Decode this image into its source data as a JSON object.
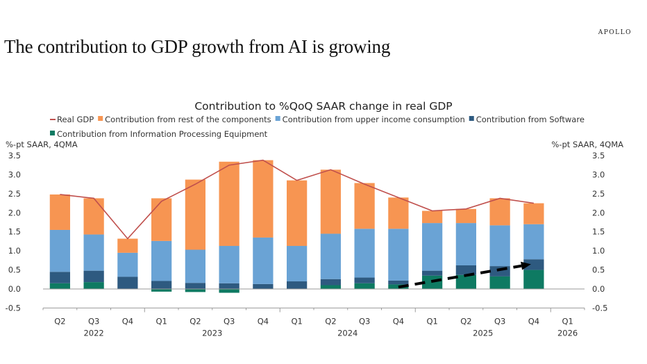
{
  "brand": "APOLLO",
  "headline": "The contribution to GDP growth from AI is growing",
  "chart_data": {
    "type": "bar",
    "stacked": true,
    "title": "Contribution to %QoQ SAAR change in real GDP",
    "ylabel_left": "%-pt SAAR, 4QMA",
    "ylabel_right": "%-pt SAAR, 4QMA",
    "ylim": [
      -0.5,
      3.5
    ],
    "yticks": [
      "3.5",
      "3.0",
      "2.5",
      "2.0",
      "1.5",
      "1.0",
      "0.5",
      "0.0",
      "-0.5"
    ],
    "ytick_values": [
      3.5,
      3.0,
      2.5,
      2.0,
      1.5,
      1.0,
      0.5,
      0.0,
      -0.5
    ],
    "grid": false,
    "legend_position": "top",
    "categories": [
      "Q2",
      "Q3",
      "Q4",
      "Q1",
      "Q2",
      "Q3",
      "Q4",
      "Q1",
      "Q2",
      "Q3",
      "Q4",
      "Q1",
      "Q2",
      "Q3",
      "Q4",
      "Q1"
    ],
    "years": [
      {
        "label": "2022",
        "center_index": 1
      },
      {
        "label": "2023",
        "center_index": 4.5
      },
      {
        "label": "2024",
        "center_index": 8.5
      },
      {
        "label": "2025",
        "center_index": 12.5
      },
      {
        "label": "2026",
        "center_index": 15
      }
    ],
    "series": [
      {
        "name": "Contribution from Information Processing Equipment",
        "kind": "bar",
        "color": "#0e7a62",
        "values": [
          0.15,
          0.18,
          0.0,
          -0.07,
          -0.08,
          -0.1,
          0.0,
          0.0,
          0.1,
          0.15,
          0.12,
          0.35,
          0.37,
          0.33,
          0.5,
          null
        ]
      },
      {
        "name": "Contribution from Software",
        "kind": "bar",
        "color": "#2e5a80",
        "values": [
          0.3,
          0.3,
          0.32,
          0.21,
          0.16,
          0.15,
          0.13,
          0.2,
          0.16,
          0.15,
          0.1,
          0.13,
          0.25,
          0.27,
          0.28,
          null
        ]
      },
      {
        "name": "Contribution from upper income consumption",
        "kind": "bar",
        "color": "#6aa3d5",
        "values": [
          1.1,
          0.95,
          0.63,
          1.05,
          0.87,
          0.98,
          1.22,
          0.93,
          1.19,
          1.28,
          1.36,
          1.25,
          1.11,
          1.07,
          0.92,
          null
        ]
      },
      {
        "name": "Contribution from rest of the components",
        "kind": "bar",
        "color": "#f79552",
        "values": [
          0.93,
          0.95,
          0.37,
          1.12,
          1.84,
          2.21,
          2.03,
          1.72,
          1.68,
          1.2,
          0.82,
          0.32,
          0.37,
          0.71,
          0.55,
          null
        ]
      },
      {
        "name": "Real GDP",
        "kind": "line",
        "color": "#c0504d",
        "values": [
          2.48,
          2.38,
          1.32,
          2.3,
          2.75,
          3.25,
          3.38,
          2.85,
          3.13,
          2.75,
          2.4,
          2.05,
          2.1,
          2.38,
          2.25,
          null
        ]
      }
    ],
    "legend": [
      {
        "label": "Real GDP",
        "color": "#c0504d",
        "marker": "line"
      },
      {
        "label": "Contribution from rest of the components",
        "color": "#f79552",
        "marker": "square"
      },
      {
        "label": "Contribution from upper income consumption",
        "color": "#6aa3d5",
        "marker": "square"
      },
      {
        "label": "Contribution from Software",
        "color": "#2e5a80",
        "marker": "square"
      },
      {
        "label": "Contribution from Information Processing Equipment",
        "color": "#0e7a62",
        "marker": "square"
      }
    ],
    "annotations": [
      {
        "type": "dashed-arrow",
        "description": "Upward trend arrow over AI contribution",
        "from": {
          "category_index": 10,
          "value": 0.05
        },
        "to": {
          "category_index": 14,
          "value": 0.65
        },
        "color": "#000000"
      }
    ]
  }
}
